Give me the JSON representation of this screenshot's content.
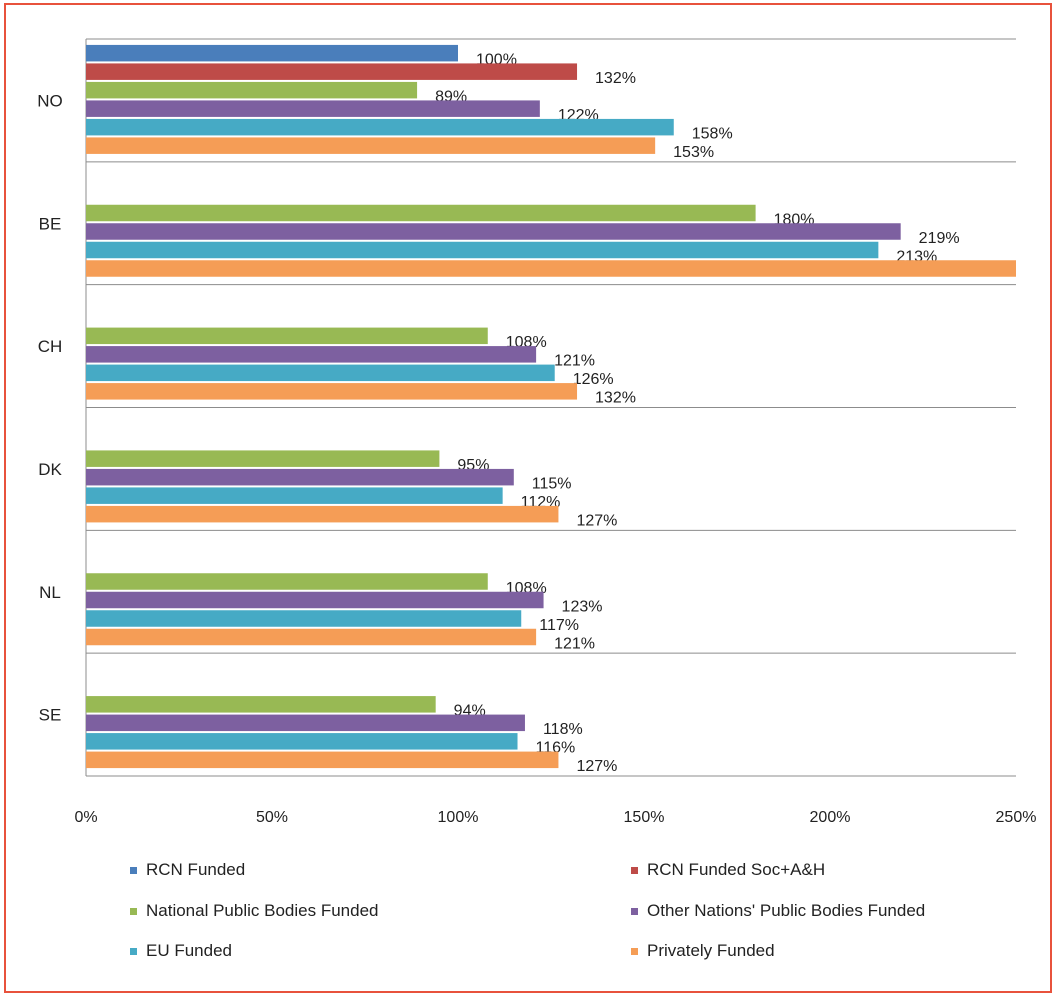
{
  "chart_data": {
    "type": "bar",
    "orientation": "horizontal",
    "categories": [
      "NO",
      "BE",
      "CH",
      "DK",
      "NL",
      "SE"
    ],
    "x_ticks": [
      "0%",
      "50%",
      "100%",
      "150%",
      "200%",
      "250%"
    ],
    "xlim": [
      0,
      250
    ],
    "grid": "horizontal separators between categories",
    "legend_position": "bottom",
    "series": [
      {
        "name": "RCN Funded",
        "color": "#4a7ebb",
        "values": [
          100,
          null,
          null,
          null,
          null,
          null
        ],
        "labels": [
          "100%",
          null,
          null,
          null,
          null,
          null
        ]
      },
      {
        "name": "RCN Funded Soc+A&H",
        "color": "#be4b48",
        "values": [
          132,
          null,
          null,
          null,
          null,
          null
        ],
        "labels": [
          "132%",
          null,
          null,
          null,
          null,
          null
        ]
      },
      {
        "name": "National Public Bodies Funded",
        "color": "#98b954",
        "values": [
          89,
          180,
          108,
          95,
          108,
          94
        ],
        "labels": [
          "89%",
          "180%",
          "108%",
          "95%",
          "108%",
          "94%"
        ]
      },
      {
        "name": "Other Nations' Public Bodies Funded",
        "color": "#7d60a0",
        "values": [
          122,
          219,
          121,
          115,
          123,
          118
        ],
        "labels": [
          "122%",
          "219%",
          "121%",
          "115%",
          "123%",
          "118%"
        ]
      },
      {
        "name": "EU Funded",
        "color": "#46aac5",
        "values": [
          158,
          213,
          126,
          112,
          117,
          116
        ],
        "labels": [
          "158%",
          "213%",
          "126%",
          "112%",
          "117%",
          "116%"
        ]
      },
      {
        "name": "Privately Funded",
        "color": "#f59d56",
        "values": [
          153,
          250,
          132,
          127,
          121,
          127
        ],
        "labels": [
          "153%",
          null,
          "132%",
          "127%",
          "121%",
          "127%"
        ]
      }
    ]
  },
  "legend": [
    {
      "label": "RCN Funded",
      "color": "#4a7ebb"
    },
    {
      "label": "RCN Funded Soc+A&H",
      "color": "#be4b48"
    },
    {
      "label": "National Public Bodies Funded",
      "color": "#98b954"
    },
    {
      "label": "Other Nations' Public Bodies Funded",
      "color": "#7d60a0"
    },
    {
      "label": "EU Funded",
      "color": "#46aac5"
    },
    {
      "label": "Privately Funded",
      "color": "#f59d56"
    }
  ]
}
